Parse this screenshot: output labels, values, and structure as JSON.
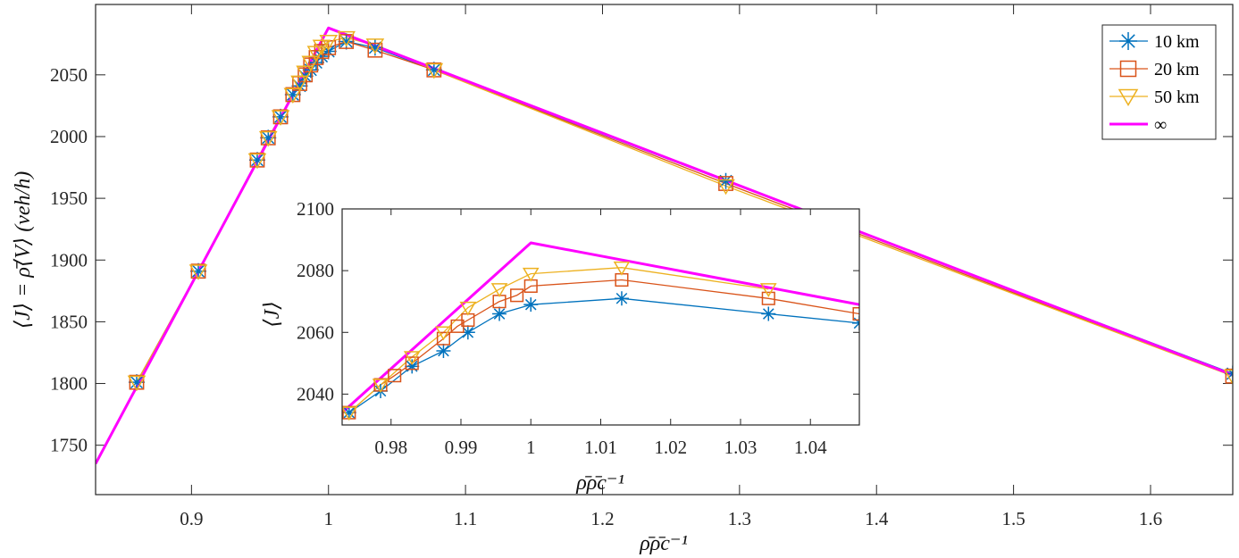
{
  "chart_data": [
    {
      "type": "line",
      "name": "main",
      "xlabel": "ρ̄ρ̄c⁻¹",
      "ylabel": "⟨J⟩ = ρ̄⟨V⟩ (veh/h)",
      "xlim": [
        0.83,
        1.66
      ],
      "ylim": [
        1710,
        2107
      ],
      "xticks": [
        0.9,
        1,
        1.1,
        1.2,
        1.3,
        1.4,
        1.5,
        1.6
      ],
      "xtick_labels": [
        "0.9",
        "1",
        "1.1",
        "1.2",
        "1.3",
        "1.4",
        "1.5",
        "1.6"
      ],
      "yticks": [
        1750,
        1800,
        1850,
        1900,
        1950,
        2000,
        2050
      ],
      "ytick_labels": [
        "1750",
        "1800",
        "1850",
        "1900",
        "1950",
        "2000",
        "2050"
      ],
      "legend": {
        "position": "top-right",
        "entries": [
          "10 km",
          "20 km",
          "50 km",
          "∞"
        ]
      },
      "series": [
        {
          "name": "10 km",
          "color": "#0072BD",
          "marker": "asterisk",
          "x": [
            0.86,
            0.905,
            0.948,
            0.956,
            0.965,
            0.974,
            0.979,
            0.983,
            0.987,
            0.991,
            0.995,
            1.0,
            1.013,
            1.034,
            1.077,
            1.29,
            1.66
          ],
          "y": [
            1801,
            1891,
            1981,
            1999,
            2016,
            2034,
            2041,
            2049,
            2054,
            2060,
            2065,
            2069,
            2077,
            2072,
            2054,
            1964,
            1808
          ]
        },
        {
          "name": "20 km",
          "color": "#D95319",
          "marker": "square",
          "x": [
            0.86,
            0.905,
            0.948,
            0.956,
            0.965,
            0.974,
            0.979,
            0.983,
            0.987,
            0.991,
            0.995,
            1.0,
            1.013,
            1.034,
            1.077,
            1.29,
            1.66
          ],
          "y": [
            1801,
            1891,
            1981,
            1999,
            2016,
            2034,
            2043,
            2050,
            2058,
            2064,
            2069,
            2072,
            2077,
            2070,
            2054,
            1962,
            1806
          ]
        },
        {
          "name": "50 km",
          "color": "#EDB120",
          "marker": "triangle-down",
          "x": [
            0.86,
            0.905,
            0.948,
            0.956,
            0.965,
            0.974,
            0.979,
            0.983,
            0.987,
            0.991,
            0.995,
            1.0,
            1.013,
            1.034,
            1.077,
            1.29,
            1.66
          ],
          "y": [
            1801,
            1891,
            1981,
            1999,
            2016,
            2034,
            2044,
            2052,
            2060,
            2068,
            2073,
            2077,
            2080,
            2074,
            2054,
            1960,
            1806
          ]
        },
        {
          "name": "∞",
          "color": "#FF00FF",
          "marker": "none",
          "x": [
            0.83,
            1.0,
            1.66
          ],
          "y": [
            1735,
            2088,
            1807
          ]
        }
      ]
    },
    {
      "type": "line",
      "name": "inset",
      "xlabel": "ρ̄ρ̄c⁻¹",
      "ylabel": "⟨J⟩",
      "xlim": [
        0.973,
        1.047
      ],
      "ylim": [
        2030,
        2100
      ],
      "xticks": [
        0.98,
        0.99,
        1.0,
        1.01,
        1.02,
        1.03,
        1.04
      ],
      "xtick_labels": [
        "0.98",
        "0.99",
        "1",
        "1.01",
        "1.02",
        "1.03",
        "1.04"
      ],
      "yticks": [
        2040,
        2060,
        2080,
        2100
      ],
      "ytick_labels": [
        "2040",
        "2060",
        "2080",
        "2100"
      ],
      "series": [
        {
          "name": "10 km",
          "color": "#0072BD",
          "marker": "asterisk",
          "x": [
            0.974,
            0.9785,
            0.983,
            0.9875,
            0.991,
            0.9955,
            1.0,
            1.013,
            1.034,
            1.047
          ],
          "y": [
            2034,
            2041,
            2049,
            2054,
            2060,
            2066,
            2069,
            2071,
            2066,
            2063
          ]
        },
        {
          "name": "20 km",
          "color": "#D95319",
          "marker": "square",
          "x": [
            0.974,
            0.9785,
            0.9805,
            0.983,
            0.9875,
            0.9895,
            0.991,
            0.9955,
            0.998,
            1.0,
            1.013,
            1.034,
            1.047
          ],
          "y": [
            2034,
            2043,
            2046,
            2050,
            2058,
            2062,
            2064,
            2070,
            2072,
            2075,
            2077,
            2071,
            2066
          ]
        },
        {
          "name": "50 km",
          "color": "#EDB120",
          "marker": "triangle-down",
          "x": [
            0.974,
            0.9785,
            0.983,
            0.9875,
            0.991,
            0.9955,
            1.0,
            1.013,
            1.034
          ],
          "y": [
            2034,
            2043,
            2052,
            2060,
            2068,
            2074,
            2079,
            2081,
            2074
          ]
        },
        {
          "name": "∞",
          "color": "#FF00FF",
          "marker": "none",
          "x": [
            0.973,
            1.0,
            1.047
          ],
          "y": [
            2034,
            2089,
            2069
          ]
        }
      ]
    }
  ]
}
